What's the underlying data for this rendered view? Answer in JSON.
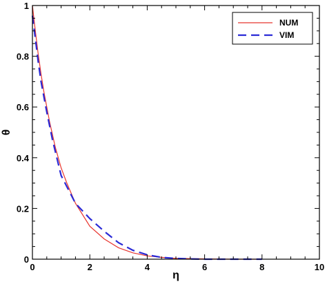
{
  "chart_data": {
    "type": "line",
    "xlabel": "η",
    "ylabel": "θ",
    "xlim": [
      0,
      10
    ],
    "ylim": [
      0,
      1
    ],
    "x_ticks": [
      "0",
      "2",
      "4",
      "6",
      "8",
      "10"
    ],
    "y_ticks": [
      "0",
      "0.2",
      "0.4",
      "0.6",
      "0.8",
      "1"
    ],
    "grid": false,
    "legend_position": "top-right",
    "series": [
      {
        "name": "NUM",
        "color": "#e8342e",
        "style": "solid",
        "x": [
          0,
          0.1,
          0.2,
          0.3,
          0.4,
          0.5,
          0.6,
          0.8,
          1.0,
          1.2,
          1.5,
          2.0,
          2.5,
          3.0,
          3.5,
          4.0,
          4.5,
          5.0,
          6.0,
          7.0,
          8.0
        ],
        "y": [
          1.0,
          0.9,
          0.81,
          0.73,
          0.66,
          0.6,
          0.54,
          0.44,
          0.36,
          0.3,
          0.22,
          0.13,
          0.08,
          0.045,
          0.025,
          0.013,
          0.007,
          0.003,
          0.001,
          0.0,
          0.0
        ]
      },
      {
        "name": "VIM",
        "color": "#2a2ad6",
        "style": "dashed",
        "x": [
          0,
          0.1,
          0.2,
          0.3,
          0.5,
          0.7,
          1.0,
          1.5,
          2.0,
          2.5,
          3.0,
          3.5,
          4.0,
          4.5,
          5.0,
          5.5,
          6.0,
          7.0,
          8.0
        ],
        "y": [
          0.96,
          0.87,
          0.78,
          0.7,
          0.58,
          0.47,
          0.33,
          0.22,
          0.16,
          0.11,
          0.065,
          0.035,
          0.017,
          0.007,
          0.003,
          0.001,
          0.0,
          0.0,
          0.0
        ]
      }
    ]
  }
}
